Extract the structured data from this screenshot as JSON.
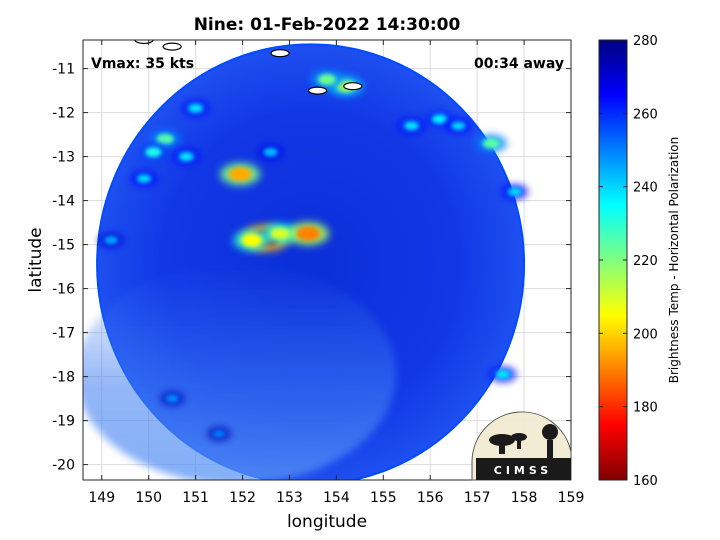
{
  "chart_data": {
    "type": "heatmap",
    "title": "Nine: 01-Feb-2022 14:30:00",
    "xlabel": "longitude",
    "ylabel": "latitude",
    "xlim": [
      148.6,
      159.0
    ],
    "ylim": [
      -20.35,
      -10.35
    ],
    "xticks": [
      149,
      150,
      151,
      152,
      153,
      154,
      155,
      156,
      157,
      158,
      159
    ],
    "yticks": [
      -11,
      -12,
      -13,
      -14,
      -15,
      -16,
      -17,
      -18,
      -19,
      -20
    ],
    "grid": true,
    "annotations": {
      "vmax": "Vmax: 35 kts",
      "away": "00:34 away",
      "logo": "CIMSS"
    },
    "colorbar": {
      "label": "Brightness Temp - Horizontal Polarization",
      "range": [
        160,
        280
      ],
      "ticks": [
        160,
        180,
        200,
        220,
        240,
        260,
        280
      ],
      "colormap": [
        "#800000",
        "#ff0000",
        "#ff8000",
        "#ffff00",
        "#80ff80",
        "#00ffff",
        "#0080ff",
        "#0000ff",
        "#000080"
      ]
    },
    "swath": {
      "center": [
        153.45,
        -15.45
      ],
      "radius_lon": 4.55,
      "radius_lat": 5.0,
      "background_value": 262
    },
    "features": [
      {
        "lon": 152.5,
        "lat": -14.85,
        "value": 170
      },
      {
        "lon": 152.2,
        "lat": -14.9,
        "value": 205
      },
      {
        "lon": 152.8,
        "lat": -14.75,
        "value": 210
      },
      {
        "lon": 153.4,
        "lat": -14.75,
        "value": 190
      },
      {
        "lon": 151.95,
        "lat": -13.4,
        "value": 195
      },
      {
        "lon": 150.35,
        "lat": -12.6,
        "value": 225
      },
      {
        "lon": 150.1,
        "lat": -12.9,
        "value": 232
      },
      {
        "lon": 150.8,
        "lat": -13.0,
        "value": 238
      },
      {
        "lon": 149.9,
        "lat": -13.5,
        "value": 240
      },
      {
        "lon": 151.0,
        "lat": -11.9,
        "value": 238
      },
      {
        "lon": 154.2,
        "lat": -11.4,
        "value": 215
      },
      {
        "lon": 153.8,
        "lat": -11.25,
        "value": 222
      },
      {
        "lon": 155.6,
        "lat": -12.3,
        "value": 238
      },
      {
        "lon": 156.2,
        "lat": -12.15,
        "value": 236
      },
      {
        "lon": 156.6,
        "lat": -12.3,
        "value": 240
      },
      {
        "lon": 157.3,
        "lat": -12.7,
        "value": 225
      },
      {
        "lon": 157.8,
        "lat": -13.8,
        "value": 240
      },
      {
        "lon": 157.55,
        "lat": -17.95,
        "value": 238
      },
      {
        "lon": 152.6,
        "lat": -12.9,
        "value": 242
      },
      {
        "lon": 149.2,
        "lat": -14.9,
        "value": 245
      },
      {
        "lon": 150.5,
        "lat": -18.5,
        "value": 248
      },
      {
        "lon": 151.5,
        "lat": -19.3,
        "value": 250
      }
    ],
    "land_outlines": [
      {
        "lon": 154.35,
        "lat": -11.4
      },
      {
        "lon": 153.6,
        "lat": -11.5
      },
      {
        "lon": 152.8,
        "lat": -10.65
      },
      {
        "lon": 150.5,
        "lat": -10.5
      },
      {
        "lon": 149.9,
        "lat": -10.35
      }
    ]
  }
}
